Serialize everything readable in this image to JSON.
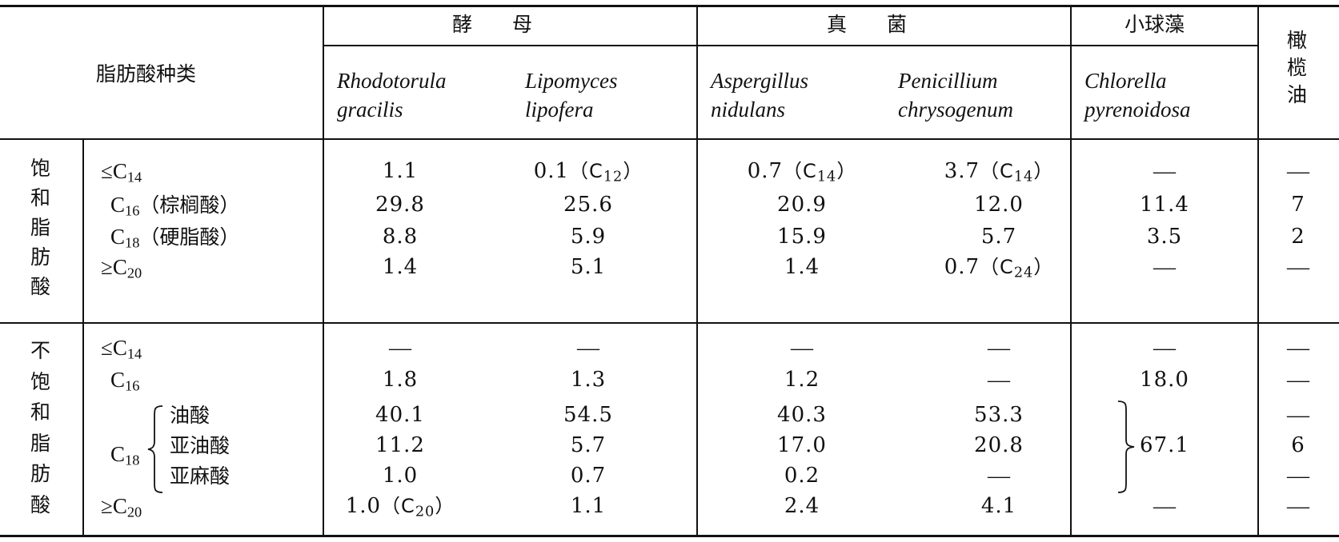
{
  "header": {
    "fatty_acid_label": "脂肪酸种类",
    "groups": {
      "yeast": "酵　　母",
      "fungus": "真　　菌",
      "algae": "小球藻",
      "olive": [
        "橄",
        "榄",
        "油"
      ]
    },
    "species": {
      "s1": [
        "Rhodotorula",
        "gracilis"
      ],
      "s2": [
        "Lipomyces",
        "lipofera"
      ],
      "s3": [
        "Aspergillus",
        "nidulans"
      ],
      "s4": [
        "Penicillium",
        "chrysogenum"
      ],
      "s5": [
        "Chlorella",
        "pyrenoidosa"
      ]
    }
  },
  "saturated": {
    "category_chars": [
      "饱",
      "和",
      "脂",
      "肪",
      "酸"
    ],
    "rows": [
      {
        "pre": "≤C",
        "sub": "14",
        "post": "",
        "cells": [
          {
            "v": "1.1"
          },
          {
            "v": "0.1",
            "tag": "12"
          },
          {
            "v": "0.7",
            "tag": "14"
          },
          {
            "v": "3.7",
            "tag": "14"
          },
          {
            "v": "—"
          },
          {
            "v": "—"
          }
        ]
      },
      {
        "pre": "C",
        "sub": "16",
        "post": "（棕榈酸）",
        "cells": [
          {
            "v": "29.8"
          },
          {
            "v": "25.6"
          },
          {
            "v": "20.9"
          },
          {
            "v": "12.0"
          },
          {
            "v": "11.4"
          },
          {
            "v": "7"
          }
        ]
      },
      {
        "pre": "C",
        "sub": "18",
        "post": "（硬脂酸）",
        "cells": [
          {
            "v": "8.8"
          },
          {
            "v": "5.9"
          },
          {
            "v": "15.9"
          },
          {
            "v": "5.7"
          },
          {
            "v": "3.5"
          },
          {
            "v": "2"
          }
        ]
      },
      {
        "pre": "≥C",
        "sub": "20",
        "post": "",
        "cells": [
          {
            "v": "1.4"
          },
          {
            "v": "5.1"
          },
          {
            "v": "1.4"
          },
          {
            "v": "0.7",
            "tag": "24"
          },
          {
            "v": "—"
          },
          {
            "v": "—"
          }
        ]
      }
    ]
  },
  "unsaturated": {
    "category_chars": [
      "不",
      "饱",
      "和",
      "脂",
      "肪",
      "酸"
    ],
    "c18_label_pre": "C",
    "c18_label_sub": "18",
    "rows": [
      {
        "pre": "≤C",
        "sub": "14",
        "post": "",
        "cells": [
          {
            "v": "—"
          },
          {
            "v": "—"
          },
          {
            "v": "—"
          },
          {
            "v": "—"
          },
          {
            "v": "—"
          },
          {
            "v": "—"
          }
        ]
      },
      {
        "pre": "C",
        "sub": "16",
        "post": "",
        "cells": [
          {
            "v": "1.8"
          },
          {
            "v": "1.3"
          },
          {
            "v": "1.2"
          },
          {
            "v": "—"
          },
          {
            "v": "18.0"
          },
          {
            "v": "—"
          }
        ]
      },
      {
        "pre": "",
        "sub": "",
        "post": "油酸",
        "cells": [
          {
            "v": "40.1"
          },
          {
            "v": "54.5"
          },
          {
            "v": "40.3"
          },
          {
            "v": "53.3"
          },
          {
            "v": ""
          },
          {
            "v": "—"
          }
        ]
      },
      {
        "pre": "",
        "sub": "",
        "post": "亚油酸",
        "cells": [
          {
            "v": "11.2"
          },
          {
            "v": "5.7"
          },
          {
            "v": "17.0"
          },
          {
            "v": "20.8"
          },
          {
            "v": "67.1"
          },
          {
            "v": "6"
          }
        ]
      },
      {
        "pre": "",
        "sub": "",
        "post": "亚麻酸",
        "cells": [
          {
            "v": "1.0"
          },
          {
            "v": "0.7"
          },
          {
            "v": "0.2"
          },
          {
            "v": "—"
          },
          {
            "v": ""
          },
          {
            "v": "—"
          }
        ]
      },
      {
        "pre": "≥C",
        "sub": "20",
        "post": "",
        "cells": [
          {
            "v": "1.0",
            "tag": "20"
          },
          {
            "v": "1.1"
          },
          {
            "v": "2.4"
          },
          {
            "v": "4.1"
          },
          {
            "v": "—"
          },
          {
            "v": "—"
          }
        ]
      }
    ]
  }
}
